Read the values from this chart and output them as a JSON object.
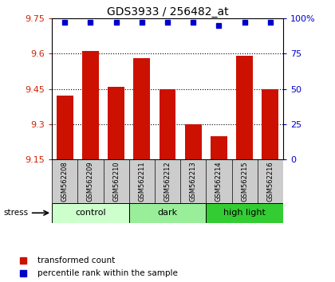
{
  "title": "GDS3933 / 256482_at",
  "samples": [
    "GSM562208",
    "GSM562209",
    "GSM562210",
    "GSM562211",
    "GSM562212",
    "GSM562213",
    "GSM562214",
    "GSM562215",
    "GSM562216"
  ],
  "red_values": [
    9.42,
    9.61,
    9.46,
    9.58,
    9.45,
    9.3,
    9.25,
    9.59,
    9.45
  ],
  "blue_values": [
    97,
    97,
    97,
    97,
    97,
    97,
    95,
    97,
    97
  ],
  "ylim_left": [
    9.15,
    9.75
  ],
  "ylim_right": [
    0,
    100
  ],
  "yticks_left": [
    9.15,
    9.3,
    9.45,
    9.6,
    9.75
  ],
  "yticks_right": [
    0,
    25,
    50,
    75,
    100
  ],
  "groups": [
    {
      "label": "control",
      "start": 0,
      "end": 3,
      "color": "#ccffcc"
    },
    {
      "label": "dark",
      "start": 3,
      "end": 6,
      "color": "#99ee99"
    },
    {
      "label": "high light",
      "start": 6,
      "end": 9,
      "color": "#33cc33"
    }
  ],
  "group_row_color": "#cccccc",
  "bar_color": "#cc1100",
  "dot_color": "#0000cc",
  "bar_bottom": 9.15,
  "bar_width": 0.65,
  "stress_label": "stress",
  "legend_red": "transformed count",
  "legend_blue": "percentile rank within the sample",
  "left_tick_color": "#cc2200",
  "right_tick_color": "#0000cc",
  "bg_color": "#ffffff"
}
